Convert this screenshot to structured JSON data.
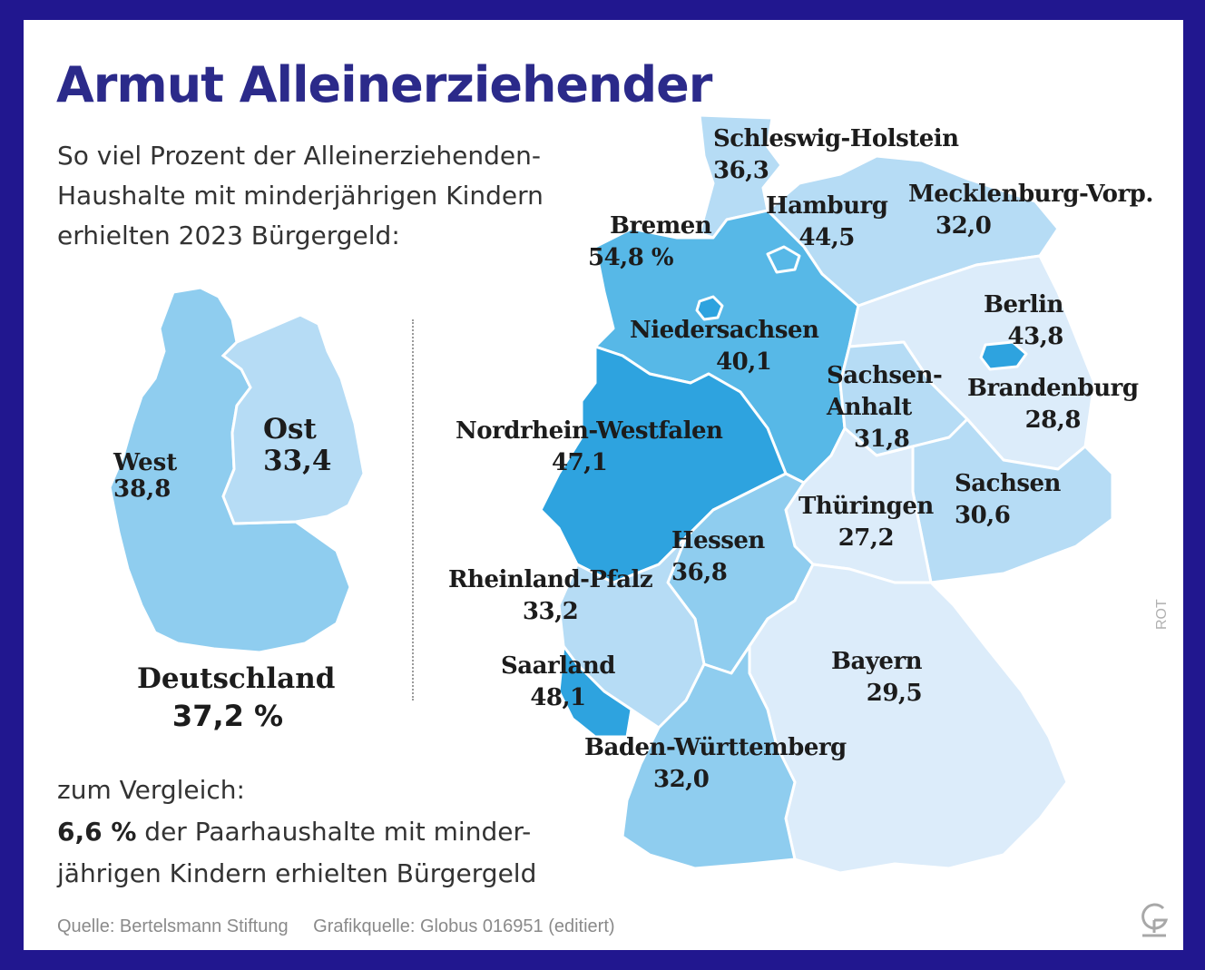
{
  "title": "Armut Alleinerziehender",
  "subtitle_lines": [
    "So viel Prozent der Alleinerziehenden-",
    "Haushalte mit minderjährigen Kindern",
    "erhielten 2023 Bürgergeld:"
  ],
  "overview": {
    "west": {
      "name": "West",
      "value": "38,8"
    },
    "ost": {
      "name": "Ost",
      "value": "33,4"
    },
    "deutschland": {
      "name": "Deutschland",
      "value": "37,2 %"
    }
  },
  "states": [
    {
      "id": "schleswig-holstein",
      "name": "Schleswig-Holstein",
      "value": "36,3",
      "pct": 36.3
    },
    {
      "id": "hamburg",
      "name": "Hamburg",
      "value": "44,5",
      "pct": 44.5
    },
    {
      "id": "mecklenburg-vorpommern",
      "name": "Mecklenburg-Vorp.",
      "value": "32,0",
      "pct": 32.0
    },
    {
      "id": "bremen",
      "name": "Bremen",
      "value": "54,8 %",
      "pct": 54.8
    },
    {
      "id": "niedersachsen",
      "name": "Niedersachsen",
      "value": "40,1",
      "pct": 40.1
    },
    {
      "id": "berlin",
      "name": "Berlin",
      "value": "43,8",
      "pct": 43.8
    },
    {
      "id": "sachsen-anhalt",
      "name": "Sachsen-Anhalt",
      "display_name": [
        "Sachsen-",
        "Anhalt"
      ],
      "value": "31,8",
      "pct": 31.8
    },
    {
      "id": "brandenburg",
      "name": "Brandenburg",
      "value": "28,8",
      "pct": 28.8
    },
    {
      "id": "nordrhein-westfalen",
      "name": "Nordrhein-Westfalen",
      "value": "47,1",
      "pct": 47.1
    },
    {
      "id": "sachsen",
      "name": "Sachsen",
      "value": "30,6",
      "pct": 30.6
    },
    {
      "id": "thueringen",
      "name": "Thüringen",
      "value": "27,2",
      "pct": 27.2
    },
    {
      "id": "hessen",
      "name": "Hessen",
      "value": "36,8",
      "pct": 36.8
    },
    {
      "id": "rheinland-pfalz",
      "name": "Rheinland-Pfalz",
      "value": "33,2",
      "pct": 33.2
    },
    {
      "id": "saarland",
      "name": "Saarland",
      "value": "48,1",
      "pct": 48.1
    },
    {
      "id": "bayern",
      "name": "Bayern",
      "value": "29,5",
      "pct": 29.5
    },
    {
      "id": "baden-wuerttemberg",
      "name": "Baden-Württemberg",
      "value": "32,0",
      "pct": 32.0
    }
  ],
  "compare": {
    "heading": "zum Vergleich:",
    "highlight": "6,6 %",
    "line1_rest": " der Paarhaushalte mit minder-",
    "line2": "jährigen Kindern erhielten Bürgergeld"
  },
  "footer": {
    "source": "Quelle: Bertelsmann Stiftung",
    "graphic_source": "Grafikquelle: Globus 016951 (editiert)"
  },
  "credit": "ROT",
  "colors": {
    "frame": "#21178f",
    "title": "#2b2a8a",
    "tier_lightest": "#dcecfa",
    "tier_light": "#b6dcf5",
    "tier_mid": "#8fcdef",
    "tier_strong": "#57b8e7",
    "tier_darkest": "#2ea3df"
  }
}
